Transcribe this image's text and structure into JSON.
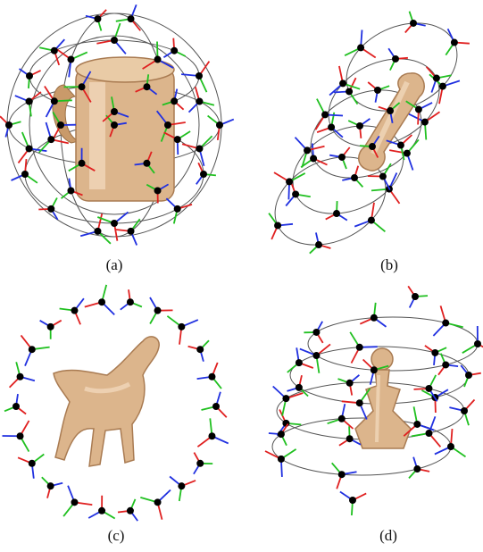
{
  "figure": {
    "panels": [
      {
        "id": "a",
        "label": "(a)",
        "object": "mug",
        "trajectory": "sphere"
      },
      {
        "id": "b",
        "label": "(b)",
        "object": "bone",
        "trajectory": "cylinder"
      },
      {
        "id": "c",
        "label": "(c)",
        "object": "horse",
        "trajectory": "ellipse"
      },
      {
        "id": "d",
        "label": "(d)",
        "object": "chess-pawn",
        "trajectory": "helix"
      }
    ],
    "colors": {
      "camera_center": "#000000",
      "trajectory": "#555555",
      "axis_x": "#e02020",
      "axis_y": "#20c020",
      "axis_z": "#2030e0",
      "object": "#d9b48a"
    }
  }
}
